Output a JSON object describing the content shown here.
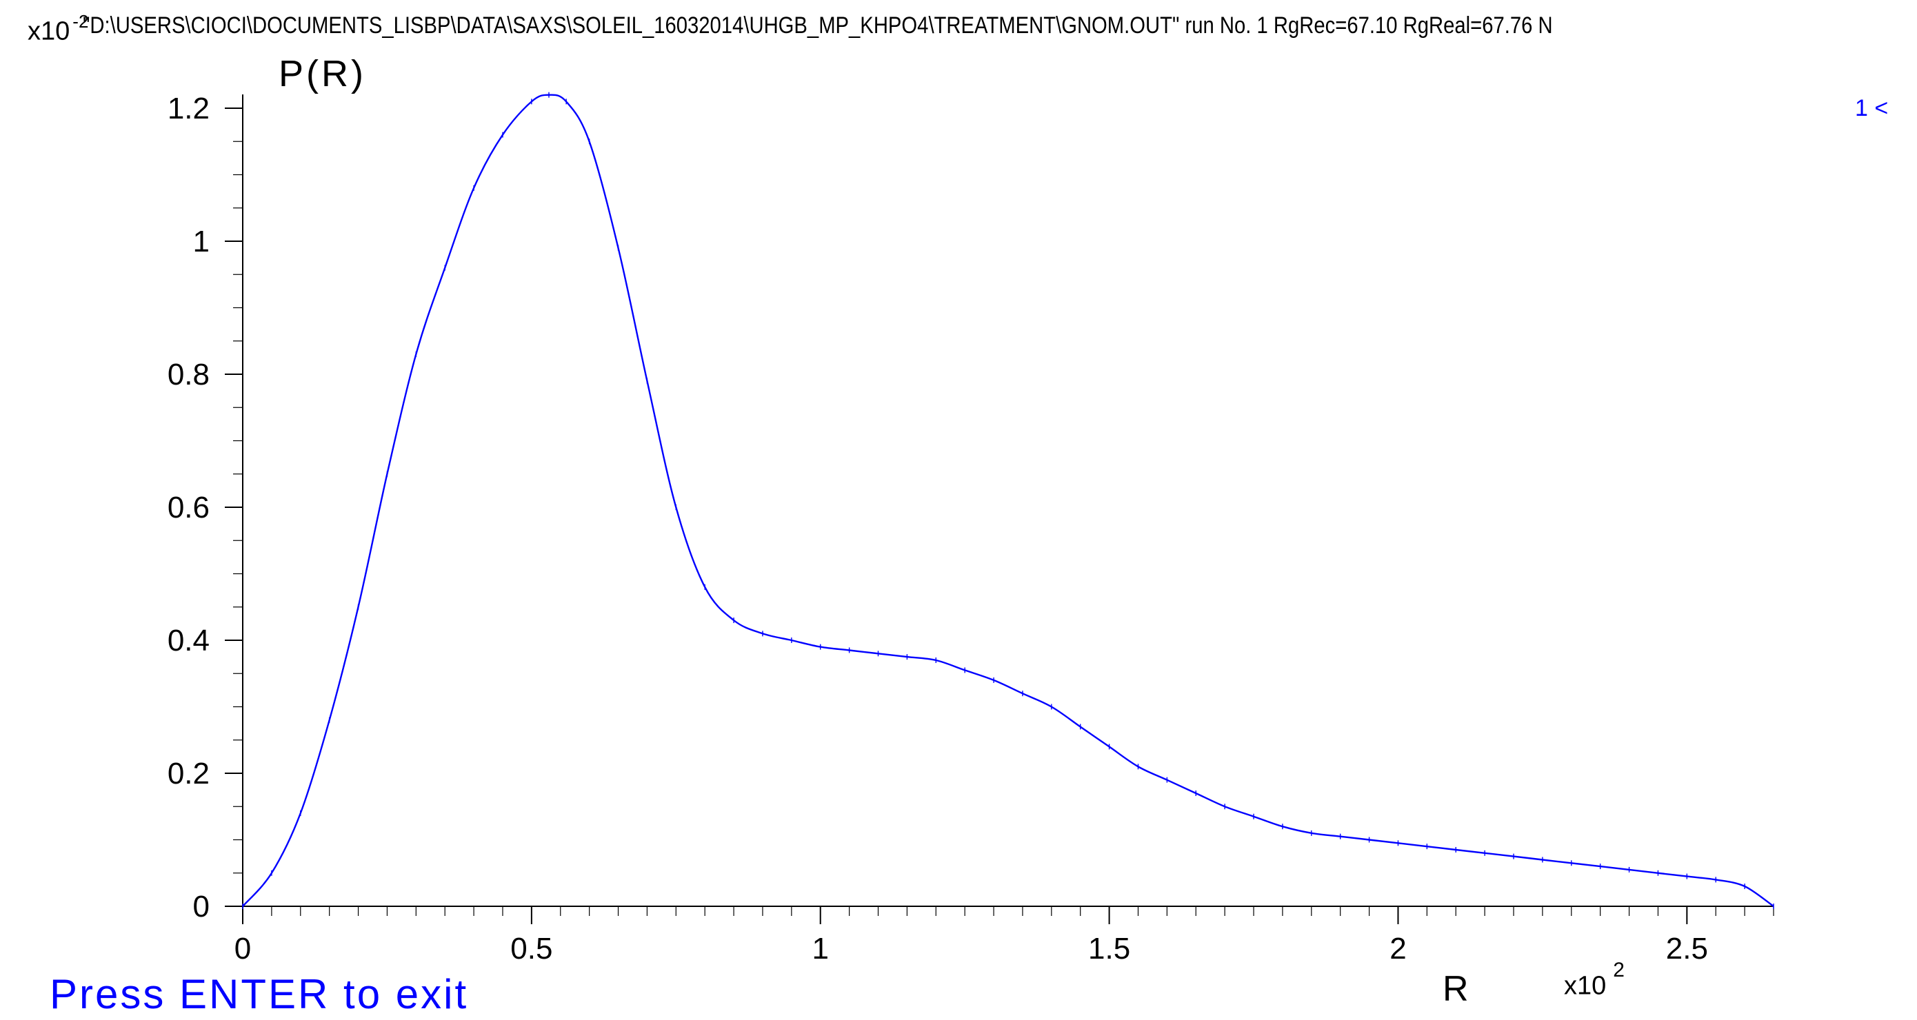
{
  "header": {
    "text": "\"D:\\USERS\\CIOCI\\DOCUMENTS_LISBP\\DATA\\SAXS\\SOLEIL_16032014\\UHGB_MP_KHPO4\\TREATMENT\\GNOM.OUT\" run No. 1 RgRec=67.10 RgReal=67.76 N"
  },
  "status": {
    "run_marker": "1 <",
    "exit_prompt": "Press ENTER to exit"
  },
  "colors": {
    "curve": "#0000ff",
    "axes": "#000000",
    "prompt": "#0000ff",
    "background": "#ffffff"
  },
  "chart_data": {
    "type": "line",
    "title": "",
    "ylabel": "P(R)",
    "xlabel": "R",
    "x_multiplier": "x10",
    "x_multiplier_exp": "2",
    "y_multiplier": "x10",
    "y_multiplier_exp": "-2",
    "xlim": [
      0,
      2.65
    ],
    "ylim": [
      0,
      1.2
    ],
    "x_ticks": [
      "0",
      "0.5",
      "1",
      "1.5",
      "2",
      "2.5"
    ],
    "y_ticks": [
      "0",
      "0.2",
      "0.4",
      "0.6",
      "0.8",
      "1",
      "1.2"
    ],
    "grid": false,
    "series": [
      {
        "x": [
          0,
          0.05,
          0.1,
          0.15,
          0.2,
          0.25,
          0.3,
          0.35,
          0.4,
          0.45,
          0.5,
          0.53,
          0.56,
          0.6,
          0.65,
          0.7,
          0.75,
          0.8,
          0.85,
          0.9,
          0.95,
          1.0,
          1.05,
          1.1,
          1.15,
          1.2,
          1.25,
          1.3,
          1.35,
          1.4,
          1.45,
          1.5,
          1.55,
          1.6,
          1.65,
          1.7,
          1.75,
          1.8,
          1.85,
          1.9,
          1.95,
          2.0,
          2.05,
          2.1,
          2.15,
          2.2,
          2.25,
          2.3,
          2.35,
          2.4,
          2.45,
          2.5,
          2.55,
          2.6,
          2.65
        ],
        "y": [
          0,
          0.05,
          0.14,
          0.28,
          0.45,
          0.65,
          0.83,
          0.96,
          1.08,
          1.16,
          1.21,
          1.22,
          1.21,
          1.15,
          0.99,
          0.79,
          0.6,
          0.48,
          0.43,
          0.41,
          0.4,
          0.39,
          0.385,
          0.38,
          0.375,
          0.37,
          0.355,
          0.34,
          0.32,
          0.3,
          0.27,
          0.24,
          0.21,
          0.19,
          0.17,
          0.15,
          0.135,
          0.12,
          0.11,
          0.105,
          0.1,
          0.095,
          0.09,
          0.085,
          0.08,
          0.075,
          0.07,
          0.065,
          0.06,
          0.055,
          0.05,
          0.045,
          0.04,
          0.03,
          0.0
        ]
      }
    ]
  }
}
